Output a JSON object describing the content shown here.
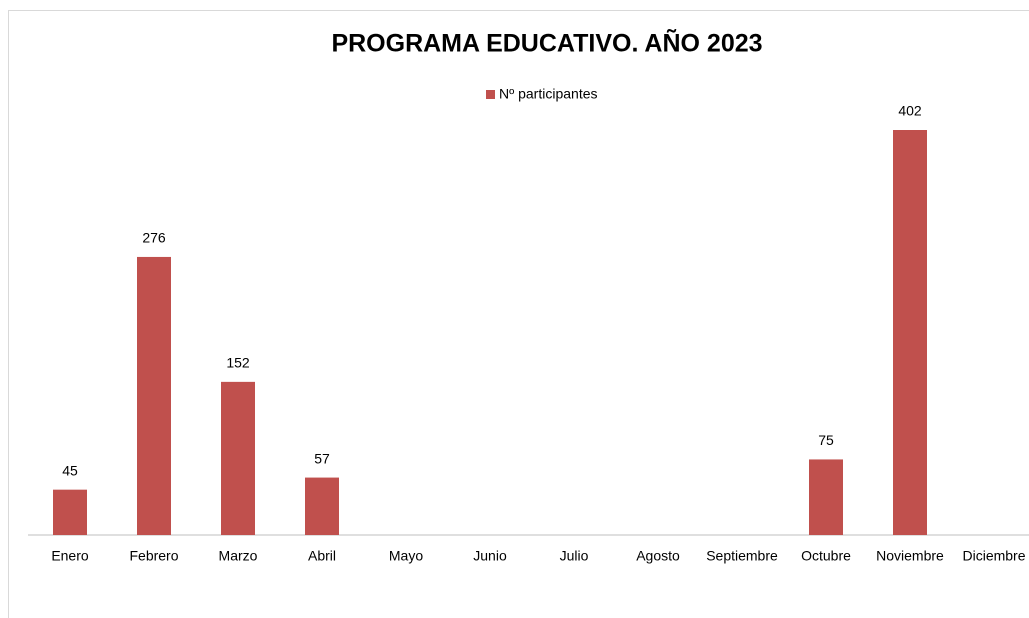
{
  "chart_data": {
    "type": "bar",
    "title": "PROGRAMA EDUCATIVO. AÑO 2023",
    "categories": [
      "Enero",
      "Febrero",
      "Marzo",
      "Abril",
      "Mayo",
      "Junio",
      "Julio",
      "Agosto",
      "Septiembre",
      "Octubre",
      "Noviembre",
      "Diciembre"
    ],
    "series": [
      {
        "name": "Nº participantes",
        "color": "#c0504d",
        "values": [
          45,
          276,
          152,
          57,
          null,
          null,
          null,
          null,
          null,
          75,
          402,
          null
        ]
      }
    ],
    "legend": "top"
  }
}
